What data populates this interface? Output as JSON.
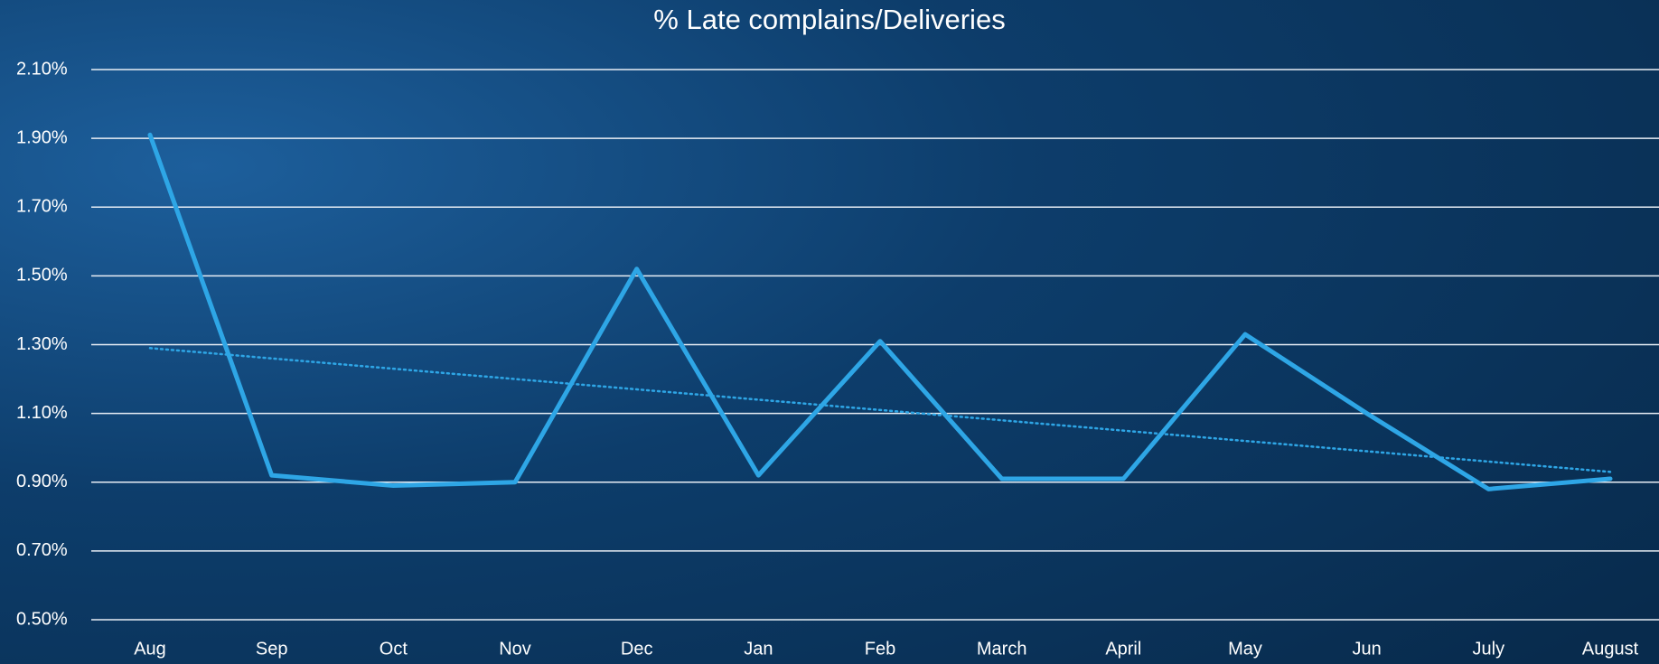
{
  "chart_data": {
    "type": "line",
    "title": "% Late complains/Deliveries",
    "categories": [
      "Aug",
      "Sep",
      "Oct",
      "Nov",
      "Dec",
      "Jan",
      "Feb",
      "March",
      "April",
      "May",
      "Jun",
      "July",
      "August"
    ],
    "series": [
      {
        "color": "#2ea6e6",
        "values": [
          1.91,
          0.92,
          0.89,
          0.9,
          1.52,
          0.92,
          1.31,
          0.91,
          0.91,
          1.33,
          1.1,
          0.88,
          0.91
        ]
      }
    ],
    "trendline": {
      "color": "#2ea6e6",
      "style": "dotted",
      "values": [
        1.29,
        0.93
      ]
    },
    "ylim": [
      0.5,
      2.1
    ],
    "yticks": [
      {
        "value": 0.5,
        "label": "0.50%"
      },
      {
        "value": 0.7,
        "label": "0.70%"
      },
      {
        "value": 0.9,
        "label": "0.90%"
      },
      {
        "value": 1.1,
        "label": "1.10%"
      },
      {
        "value": 1.3,
        "label": "1.30%"
      },
      {
        "value": 1.5,
        "label": "1.50%"
      },
      {
        "value": 1.7,
        "label": "1.70%"
      },
      {
        "value": 1.9,
        "label": "1.90%"
      },
      {
        "value": 2.1,
        "label": "2.10%"
      }
    ],
    "grid": true
  }
}
